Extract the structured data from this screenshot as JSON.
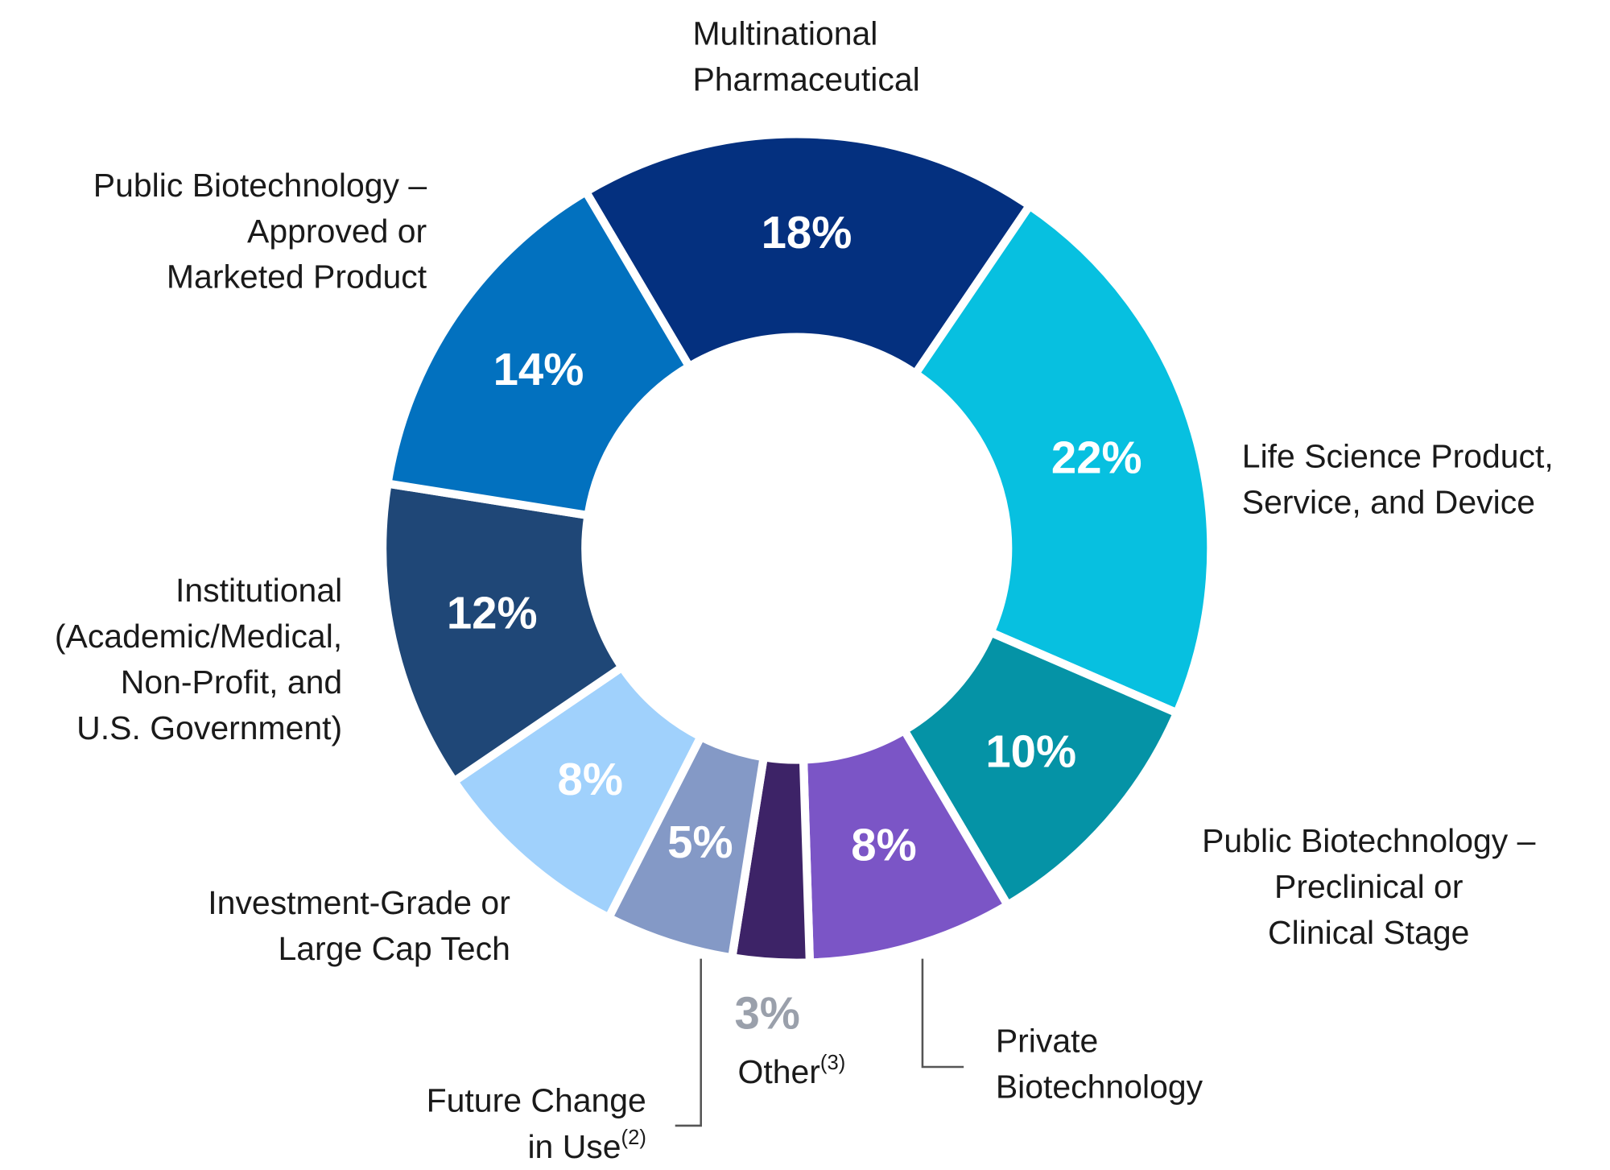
{
  "chart_data": {
    "type": "donut",
    "categories": [
      [
        "Multinational",
        "Pharmaceutical"
      ],
      [
        "Life Science Product,",
        "Service, and Device"
      ],
      [
        "Public Biotechnology –",
        "Preclinical or",
        "Clinical Stage"
      ],
      [
        "Private",
        "Biotechnology"
      ],
      [
        {
          "text": "Other",
          "sup": "(3)"
        }
      ],
      [
        "Future Change",
        {
          "text": "in Use",
          "sup": "(2)"
        }
      ],
      [
        "Investment-Grade or",
        "Large Cap Tech"
      ],
      [
        "Institutional",
        "(Academic/Medical,",
        "Non-Profit, and",
        "U.S. Government)"
      ],
      [
        "Public Biotechnology –",
        "Approved or",
        "Marketed Product"
      ]
    ],
    "values": [
      18,
      22,
      10,
      8,
      3,
      5,
      8,
      12,
      14
    ],
    "value_labels": [
      "18%",
      "22%",
      "10%",
      "8%",
      "3%",
      "5%",
      "8%",
      "12%",
      "14%"
    ],
    "colors": [
      "#04307f",
      "#07c0e0",
      "#0593a6",
      "#7b55c6",
      "#3d2367",
      "#8499c6",
      "#a0d1fc",
      "#1f4777",
      "#0271bf"
    ]
  }
}
